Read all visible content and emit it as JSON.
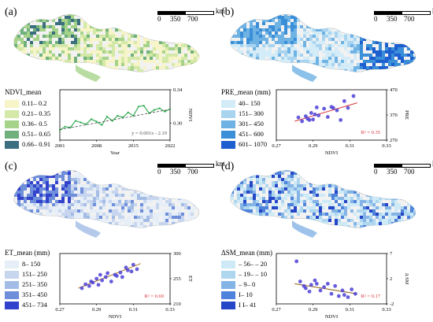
{
  "panels": [
    {
      "id": "a",
      "label": "(a)",
      "scale": {
        "t0": "0",
        "t1": "350",
        "t2": "700",
        "unit": "km"
      },
      "legend": {
        "title": "NDVI_mean",
        "items": [
          {
            "label": "0.11– 0.2",
            "color": "#f7f4c8"
          },
          {
            "label": "0.21– 0.35",
            "color": "#d4e9a8"
          },
          {
            "label": "0.36– 0.5",
            "color": "#a6d38a"
          },
          {
            "label": "0.51– 0.65",
            "color": "#6fb07c"
          },
          {
            "label": "0.66– 0.91",
            "color": "#3b6e7e"
          }
        ]
      },
      "map_colors": [
        "#f7f4c8",
        "#d4e9a8",
        "#a6d38a",
        "#6fb07c",
        "#3b6e7e"
      ],
      "chart_data": {
        "type": "line",
        "x": [
          2001,
          2002,
          2003,
          2004,
          2005,
          2006,
          2007,
          2008,
          2009,
          2010,
          2011,
          2012,
          2013,
          2014,
          2015,
          2016,
          2017,
          2018,
          2019,
          2020,
          2021,
          2022
        ],
        "y": [
          0.292,
          0.296,
          0.295,
          0.303,
          0.301,
          0.299,
          0.305,
          0.302,
          0.298,
          0.308,
          0.303,
          0.309,
          0.307,
          0.313,
          0.309,
          0.32,
          0.321,
          0.312,
          0.316,
          0.318,
          0.314,
          0.317
        ],
        "trend": {
          "slope": 0.001,
          "intercept": -2.19
        },
        "annotation": "y = 0.001x - 2.19",
        "xlabel": "Year",
        "ylabel": "NDVI",
        "xticks": [
          "2001",
          "2008",
          "2015",
          "2022"
        ],
        "yticks": [
          "0.30",
          "0.34"
        ],
        "xlim": [
          2001,
          2022
        ],
        "ylim": [
          0.28,
          0.34
        ],
        "line_color": "#2aa84a",
        "trend_color": "#444444"
      }
    },
    {
      "id": "b",
      "label": "(b)",
      "scale": {
        "t0": "0",
        "t1": "350",
        "t2": "700",
        "unit": "km"
      },
      "legend": {
        "title": "PRE_mean (mm)",
        "items": [
          {
            "label": "40– 150",
            "color": "#d4ecf7"
          },
          {
            "label": "151– 300",
            "color": "#a9d4f0"
          },
          {
            "label": "301– 450",
            "color": "#6fb2e4"
          },
          {
            "label": "451– 600",
            "color": "#3a8fd8"
          },
          {
            "label": "601– 1070",
            "color": "#1e5fcf"
          }
        ]
      },
      "map_colors": [
        "#d4ecf7",
        "#a9d4f0",
        "#6fb2e4",
        "#3a8fd8",
        "#1e5fcf"
      ],
      "chart_data": {
        "type": "scatter",
        "x": [
          0.282,
          0.284,
          0.286,
          0.287,
          0.288,
          0.289,
          0.29,
          0.291,
          0.292,
          0.293,
          0.296,
          0.298,
          0.3,
          0.301,
          0.303,
          0.305,
          0.307,
          0.309,
          0.312
        ],
        "y": [
          360,
          345,
          365,
          355,
          350,
          378,
          352,
          372,
          400,
          368,
          395,
          362,
          402,
          398,
          388,
          350,
          425,
          398,
          445
        ],
        "fit": {
          "x": [
            0.28,
            0.314
          ],
          "y": [
            345,
            418
          ]
        },
        "annotation": "R² = 0.35",
        "xlabel": "NDVI",
        "ylabel": "PRE",
        "xticks": [
          "0.27",
          "0.29",
          "0.31",
          "0.33"
        ],
        "yticks": [
          "270",
          "370",
          "470"
        ],
        "xlim": [
          0.27,
          0.33
        ],
        "ylim": [
          270,
          470
        ],
        "point_color": "#4b3fd6",
        "fit_color": "#d9333a"
      }
    },
    {
      "id": "c",
      "label": "(c)",
      "scale": {
        "t0": "0",
        "t1": "350",
        "t2": "700",
        "unit": "km"
      },
      "legend": {
        "title": "ET_mean (mm)",
        "items": [
          {
            "label": "8– 150",
            "color": "#e6eef8"
          },
          {
            "label": "151– 250",
            "color": "#c7d6ee"
          },
          {
            "label": "251– 350",
            "color": "#a3bce6"
          },
          {
            "label": "351– 450",
            "color": "#6f8fdb"
          },
          {
            "label": "451– 734",
            "color": "#3342cc"
          }
        ]
      },
      "map_colors": [
        "#e6eef8",
        "#c7d6ee",
        "#a3bce6",
        "#6f8fdb",
        "#3342cc"
      ],
      "chart_data": {
        "type": "scatter",
        "x": [
          0.282,
          0.284,
          0.286,
          0.287,
          0.288,
          0.29,
          0.291,
          0.292,
          0.293,
          0.295,
          0.296,
          0.298,
          0.3,
          0.301,
          0.303,
          0.304,
          0.306,
          0.307,
          0.309,
          0.31,
          0.312
        ],
        "y": [
          238,
          245,
          242,
          250,
          248,
          255,
          244,
          262,
          252,
          258,
          265,
          250,
          262,
          260,
          266,
          258,
          275,
          270,
          268,
          280,
          272
        ],
        "fit": {
          "x": [
            0.28,
            0.314
          ],
          "y": [
            238,
            282
          ]
        },
        "annotation": "R² = 0.69",
        "xlabel": "NDVI",
        "ylabel": "ET",
        "xticks": [
          "0.27",
          "0.29",
          "0.31",
          "0.33"
        ],
        "yticks": [
          "210",
          "255",
          "300"
        ],
        "xlim": [
          0.27,
          0.33
        ],
        "ylim": [
          210,
          300
        ],
        "point_color": "#4b3fd6",
        "fit_color": "#b07a1a"
      }
    },
    {
      "id": "d",
      "label": "(d)",
      "scale": {
        "t0": "0",
        "t1": "350",
        "t2": "700",
        "unit": "km"
      },
      "legend": {
        "title": "ΔSM_mean (mm)",
        "items": [
          {
            "label": "– 56– – 20",
            "color": "#cdeaf6"
          },
          {
            "label": "– 19– – 10",
            "color": "#aed6ef"
          },
          {
            "label": "– 9– 0",
            "color": "#84b4e6"
          },
          {
            "label": "I– 10",
            "color": "#4f82da"
          },
          {
            "label": "I I– 41",
            "color": "#2646c8"
          }
        ]
      },
      "map_colors": [
        "#cdeaf6",
        "#aed6ef",
        "#84b4e6",
        "#4f82da",
        "#2646c8"
      ],
      "chart_data": {
        "type": "scatter",
        "x": [
          0.281,
          0.283,
          0.285,
          0.286,
          0.288,
          0.289,
          0.291,
          0.292,
          0.294,
          0.296,
          0.298,
          0.3,
          0.302,
          0.304,
          0.306,
          0.307,
          0.309,
          0.311,
          0.313
        ],
        "y": [
          5.6,
          2.0,
          1.2,
          0.8,
          0.2,
          1.4,
          2.2,
          1.6,
          0.4,
          1.0,
          1.6,
          -0.2,
          1.2,
          -0.6,
          0.4,
          -0.4,
          -0.8,
          0.6,
          -0.2
        ],
        "fit": {
          "x": [
            0.28,
            0.314
          ],
          "y": [
            1.6,
            -0.2
          ]
        },
        "annotation": "R² = 0.17",
        "xlabel": "NDVI",
        "ylabel": "Δ SM",
        "xticks": [
          "0.27",
          "0.29",
          "0.31",
          "0.33"
        ],
        "yticks": [
          "-2",
          "2",
          "7"
        ],
        "xlim": [
          0.27,
          0.33
        ],
        "ylim": [
          -2,
          7
        ],
        "point_color": "#4b3fd6",
        "fit_color": "#8a5a10"
      }
    }
  ]
}
